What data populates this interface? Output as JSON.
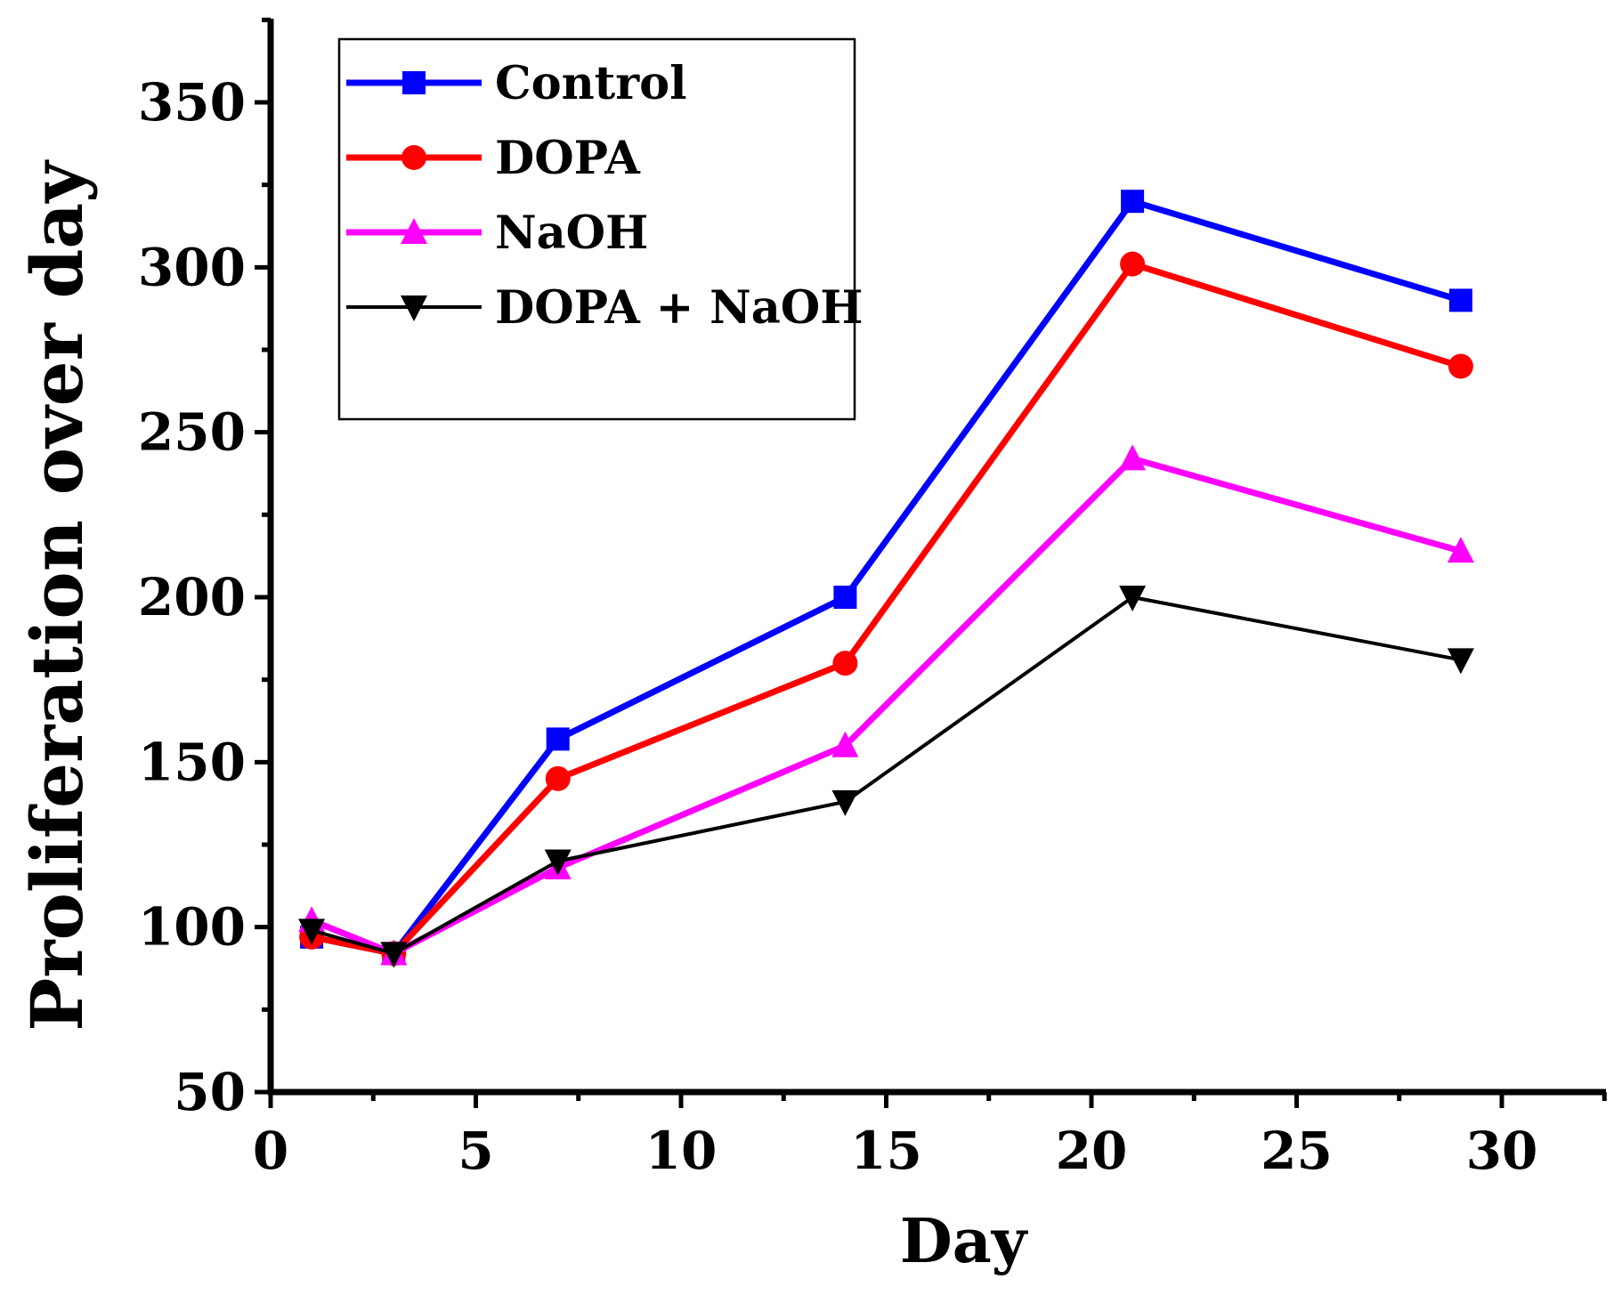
{
  "chart_data": {
    "type": "line",
    "title": "",
    "xlabel": "Day",
    "ylabel": "Proliferation over day",
    "xlim": [
      0,
      32.5
    ],
    "ylim": [
      50,
      375
    ],
    "xticks": [
      0,
      5,
      10,
      15,
      20,
      25,
      30
    ],
    "yticks": [
      50,
      100,
      150,
      200,
      250,
      300,
      350
    ],
    "grid": false,
    "legend_position": "top-left",
    "x": [
      1,
      3,
      7,
      14,
      21,
      29
    ],
    "series": [
      {
        "name": "Control",
        "color": "#0000ff",
        "marker": "square",
        "values": [
          97,
          92,
          157,
          200,
          320,
          290
        ]
      },
      {
        "name": "DOPA",
        "color": "#ff0000",
        "marker": "circle",
        "values": [
          97,
          92,
          145,
          180,
          301,
          270
        ]
      },
      {
        "name": "NaOH",
        "color": "#ff00ff",
        "marker": "triangle-up",
        "values": [
          102,
          92,
          118,
          155,
          242,
          214
        ]
      },
      {
        "name": "DOPA + NaOH",
        "color": "#000000",
        "marker": "triangle-down",
        "values": [
          99,
          92,
          120,
          138,
          200,
          181
        ]
      }
    ]
  }
}
